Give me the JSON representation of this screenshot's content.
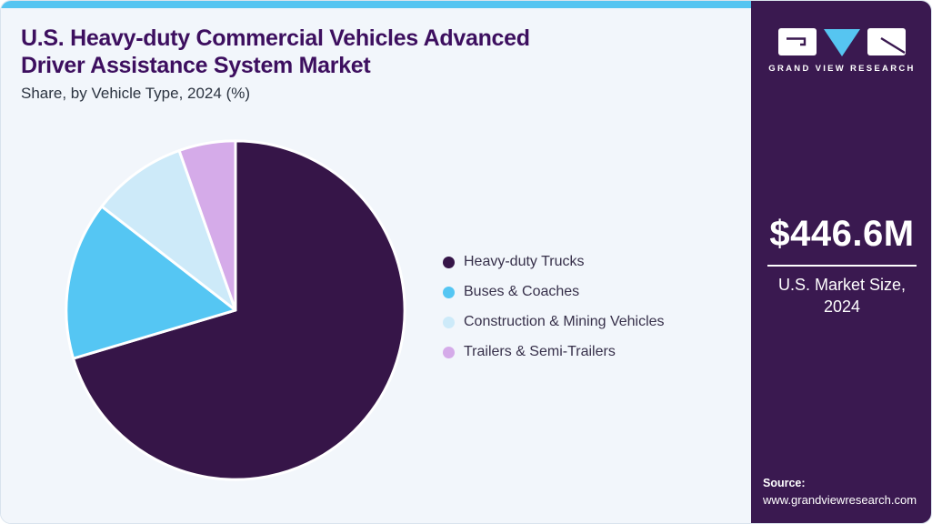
{
  "header": {
    "title_line1": "U.S. Heavy-duty Commercial Vehicles Advanced",
    "title_line2": "Driver Assistance System Market",
    "subtitle": "Share, by Vehicle Type, 2024 (%)"
  },
  "chart_data": {
    "type": "pie",
    "title": "U.S. Heavy-duty Commercial Vehicles Advanced Driver Assistance System Market Share, by Vehicle Type, 2024 (%)",
    "unit": "%",
    "start_angle_deg": 0,
    "direction": "clockwise",
    "categories": [
      "Heavy-duty Trucks",
      "Buses & Coaches",
      "Construction & Mining Vehicles",
      "Trailers & Semi-Trailers"
    ],
    "values": [
      70.4,
      15.1,
      9.1,
      5.4
    ],
    "values_note": "Slice percentages estimated from angles; no data labels shown in chart",
    "colors": [
      "#361548",
      "#55c6f3",
      "#cdeaf9",
      "#d5abe9"
    ],
    "legend_position": "right",
    "slice_gap_color": "#ffffff"
  },
  "sidebar": {
    "brand_name": "GRAND VIEW RESEARCH",
    "market_size_value": "$446.6M",
    "market_size_label": "U.S. Market Size, 2024",
    "source_label": "Source:",
    "source_url": "www.grandviewresearch.com"
  },
  "theme": {
    "accent_blue": "#56c5f1",
    "panel_background": "#f2f6fb",
    "sidebar_background": "#3a1950",
    "title_color": "#3d0f5f",
    "subtitle_color": "#2b3340",
    "legend_text_color": "#37304a",
    "card_border": "#d9e3ed"
  }
}
